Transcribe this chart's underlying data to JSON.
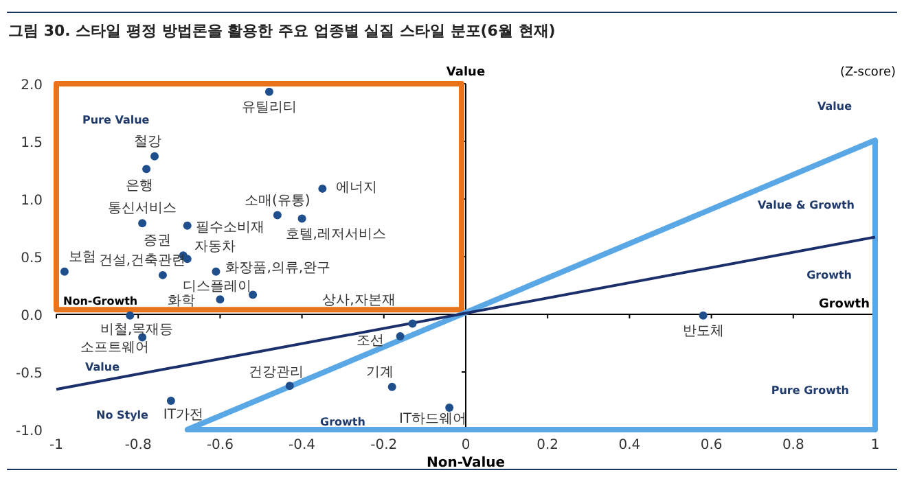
{
  "chart_data": {
    "type": "scatter",
    "title": "그림 30. 스타일 평정 방법론을 활용한 주요 업종별 실질 스타일 분포(6월 현재)",
    "xlabel": "Growth",
    "ylabel": "Value",
    "xlim": [
      -1,
      1
    ],
    "ylim": [
      -1,
      2
    ],
    "xticks": [
      {
        "value": -1,
        "label": "-1"
      },
      {
        "value": -0.8,
        "label": "-0.8"
      },
      {
        "value": -0.6,
        "label": "-0.6"
      },
      {
        "value": -0.4,
        "label": "-0.4"
      },
      {
        "value": -0.2,
        "label": "-0.2"
      },
      0,
      0.2,
      0.4,
      0.6,
      0.8,
      1
    ],
    "yticks": [
      {
        "value": -1,
        "label": "-1.0"
      },
      {
        "value": -0.5,
        "label": "-0.5"
      },
      {
        "value": 0,
        "label": "0.0"
      },
      0.5,
      {
        "value": 1,
        "label": "1.0"
      },
      1.5,
      {
        "value": 2,
        "label": "2.0"
      }
    ],
    "series": [
      {
        "type": "line",
        "color": "#1a2f6b",
        "x": [
          -1,
          1
        ],
        "values": [
          -0.65,
          0.67
        ]
      },
      {
        "color": "#1f4e8c",
        "marker": "circle",
        "x": [
          -0.48,
          -0.76,
          -0.78,
          -0.35,
          -0.46,
          -0.4,
          -0.79,
          -0.68,
          -0.69,
          -0.68,
          -0.98,
          -0.74,
          -0.61,
          -0.52,
          -0.6,
          -0.82,
          -0.79,
          -0.13,
          -0.16,
          -0.43,
          -0.18,
          -0.04,
          -0.72,
          0.58
        ],
        "values": [
          1.93,
          1.37,
          1.26,
          1.09,
          0.86,
          0.83,
          0.79,
          0.77,
          0.51,
          0.48,
          0.37,
          0.34,
          0.37,
          0.17,
          0.13,
          -0.01,
          -0.2,
          -0.08,
          -0.19,
          -0.62,
          -0.63,
          -0.81,
          -0.75,
          -0.01
        ]
      }
    ],
    "annotations": [
      {
        "text": "유틸리티",
        "x": -0.48,
        "y": 1.93
      },
      {
        "text": "철강",
        "x": -0.76,
        "y": 1.37
      },
      {
        "text": "은행",
        "x": -0.78,
        "y": 1.26
      },
      {
        "text": "에너지",
        "x": -0.35,
        "y": 1.09
      },
      {
        "text": "소매(유통)",
        "x": -0.46,
        "y": 0.86
      },
      {
        "text": "호텔,레저서비스",
        "x": -0.4,
        "y": 0.83
      },
      {
        "text": "통신서비스",
        "x": -0.79,
        "y": 0.79
      },
      {
        "text": "필수소비재",
        "x": -0.68,
        "y": 0.77
      },
      {
        "text": "증권",
        "x": -0.69,
        "y": 0.51
      },
      {
        "text": "자동차",
        "x": -0.68,
        "y": 0.48
      },
      {
        "text": "보험",
        "x": -0.98,
        "y": 0.37
      },
      {
        "text": "건설,건축관련",
        "x": -0.74,
        "y": 0.34
      },
      {
        "text": "화장품,의류,완구",
        "x": -0.61,
        "y": 0.37
      },
      {
        "text": "디스플레이",
        "x": -0.52,
        "y": 0.17
      },
      {
        "text": "화학",
        "x": -0.6,
        "y": 0.13
      },
      {
        "text": "비철,목재등",
        "x": -0.82,
        "y": -0.01
      },
      {
        "text": "소프트웨어",
        "x": -0.79,
        "y": -0.2
      },
      {
        "text": "상사,자본재",
        "x": -0.13,
        "y": -0.08
      },
      {
        "text": "조선",
        "x": -0.16,
        "y": -0.19
      },
      {
        "text": "건강관리",
        "x": -0.43,
        "y": -0.62
      },
      {
        "text": "기계",
        "x": -0.18,
        "y": -0.63
      },
      {
        "text": "IT하드웨어",
        "x": -0.04,
        "y": -0.81
      },
      {
        "text": "IT가전",
        "x": -0.72,
        "y": -0.75
      },
      {
        "text": "반도체",
        "x": 0.58,
        "y": -0.01
      },
      "Pure Value",
      "Non-Growth",
      "Value",
      "No Style",
      "Growth",
      "Value",
      "Value & Growth",
      "Growth",
      "Pure Growth",
      "Non-Value",
      "(Z-score)"
    ]
  }
}
